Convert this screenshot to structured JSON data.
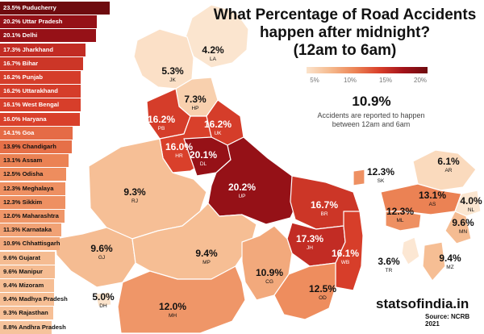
{
  "title": "What Percentage of Road Accidents\nhappen after midnight?\n(12am to 6am)",
  "legend": {
    "ticks": [
      "5%",
      "10%",
      "15%",
      "20%"
    ],
    "tick_values": [
      5,
      10,
      15,
      20
    ],
    "colors": [
      "#fbe3cb",
      "#f5b98d",
      "#ec8455",
      "#d9402b",
      "#a3131a",
      "#6e0b0f"
    ]
  },
  "national": {
    "value": "10.9%",
    "note": "Accidents are reported to happen\nbetween 12am and 6am"
  },
  "ranking": [
    {
      "label": "23.5% Puducherry",
      "value": 23.5
    },
    {
      "label": "20.2% Uttar Pradesh",
      "value": 20.2
    },
    {
      "label": "20.1% Delhi",
      "value": 20.1
    },
    {
      "label": "17.3% Jharkhand",
      "value": 17.3
    },
    {
      "label": "16.7% Bihar",
      "value": 16.7
    },
    {
      "label": "16.2% Punjab",
      "value": 16.2
    },
    {
      "label": "16.2% Uttarakhand",
      "value": 16.2
    },
    {
      "label": "16.1% West Bengal",
      "value": 16.1
    },
    {
      "label": "16.0% Haryana",
      "value": 16.0
    },
    {
      "label": "14.1% Goa",
      "value": 14.1
    },
    {
      "label": "13.9% Chandigarh",
      "value": 13.9
    },
    {
      "label": "13.1% Assam",
      "value": 13.1
    },
    {
      "label": "12.5% Odisha",
      "value": 12.5
    },
    {
      "label": "12.3% Meghalaya",
      "value": 12.3
    },
    {
      "label": "12.3% Sikkim",
      "value": 12.3
    },
    {
      "label": "12.0% Maharashtra",
      "value": 12.0
    },
    {
      "label": "11.3% Karnataka",
      "value": 11.3
    },
    {
      "label": "10.9% Chhattisgarh",
      "value": 10.9
    },
    {
      "label": "9.6% Gujarat",
      "value": 9.6
    },
    {
      "label": "9.6% Manipur",
      "value": 9.6
    },
    {
      "label": "9.4% Mizoram",
      "value": 9.4
    },
    {
      "label": "9.4% Madhya Pradesh",
      "value": 9.4
    },
    {
      "label": "9.3% Rajasthan",
      "value": 9.3
    },
    {
      "label": "8.8% Andhra Pradesh",
      "value": 8.8
    }
  ],
  "regions": [
    {
      "code": "LA",
      "value": "4.2%",
      "num": 4.2
    },
    {
      "code": "JK",
      "value": "5.3%",
      "num": 5.3
    },
    {
      "code": "HP",
      "value": "7.3%",
      "num": 7.3
    },
    {
      "code": "PB",
      "value": "16.2%",
      "num": 16.2
    },
    {
      "code": "UK",
      "value": "16.2%",
      "num": 16.2
    },
    {
      "code": "HR",
      "value": "16.0%",
      "num": 16.0
    },
    {
      "code": "DL",
      "value": "20.1%",
      "num": 20.1
    },
    {
      "code": "RJ",
      "value": "9.3%",
      "num": 9.3
    },
    {
      "code": "UP",
      "value": "20.2%",
      "num": 20.2
    },
    {
      "code": "BR",
      "value": "16.7%",
      "num": 16.7
    },
    {
      "code": "SK",
      "value": "12.3%",
      "num": 12.3
    },
    {
      "code": "AR",
      "value": "6.1%",
      "num": 6.1
    },
    {
      "code": "AS",
      "value": "13.1%",
      "num": 13.1
    },
    {
      "code": "NL",
      "value": "4.0%",
      "num": 4.0
    },
    {
      "code": "ML",
      "value": "12.3%",
      "num": 12.3
    },
    {
      "code": "MN",
      "value": "9.6%",
      "num": 9.6
    },
    {
      "code": "GJ",
      "value": "9.6%",
      "num": 9.6
    },
    {
      "code": "MP",
      "value": "9.4%",
      "num": 9.4
    },
    {
      "code": "JH",
      "value": "17.3%",
      "num": 17.3
    },
    {
      "code": "WB",
      "value": "16.1%",
      "num": 16.1
    },
    {
      "code": "TR",
      "value": "3.6%",
      "num": 3.6
    },
    {
      "code": "MZ",
      "value": "9.4%",
      "num": 9.4
    },
    {
      "code": "CG",
      "value": "10.9%",
      "num": 10.9
    },
    {
      "code": "DH",
      "value": "5.0%",
      "num": 5.0
    },
    {
      "code": "OD",
      "value": "12.5%",
      "num": 12.5
    },
    {
      "code": "MH",
      "value": "12.0%",
      "num": 12.0
    }
  ],
  "brand": "statsofindia.in",
  "source": "Source: NCRB 2021"
}
